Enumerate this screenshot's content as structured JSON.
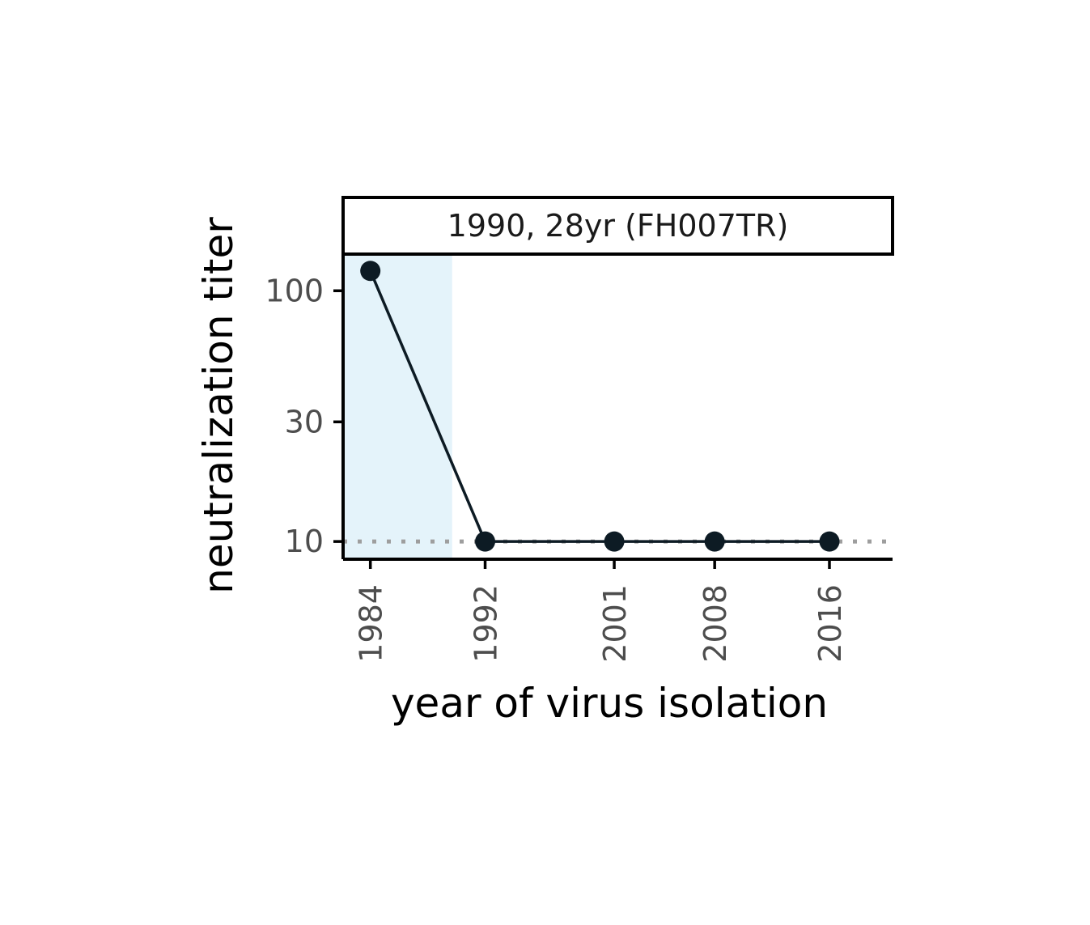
{
  "chart_data": {
    "type": "line",
    "facet_title": "1990, 28yr (FH007TR)",
    "xlabel": "year of virus isolation",
    "ylabel": "neutralization titer",
    "x_ticks": [
      1984,
      1992,
      2001,
      2008,
      2016
    ],
    "x_tick_labels": [
      "1984",
      "1992",
      "2001",
      "2008",
      "2016"
    ],
    "y_scale": "log",
    "y_ticks": [
      10,
      30,
      100
    ],
    "y_tick_labels": [
      "10",
      "30",
      "100"
    ],
    "xlim": [
      1982.1,
      2020.4
    ],
    "ylim": [
      8.5,
      140
    ],
    "series": [
      {
        "x": [
          1984,
          1992,
          2001,
          2008,
          2016
        ],
        "values": [
          120,
          10,
          10,
          10,
          10
        ]
      }
    ],
    "reference_line_y": 10,
    "shaded_x_range": [
      1982.1,
      1989.7
    ],
    "colors": {
      "shade": "#e4f3fa",
      "line": "#0d1b24",
      "reference": "#9e9e9e",
      "axis": "#000000"
    },
    "grid": false
  }
}
